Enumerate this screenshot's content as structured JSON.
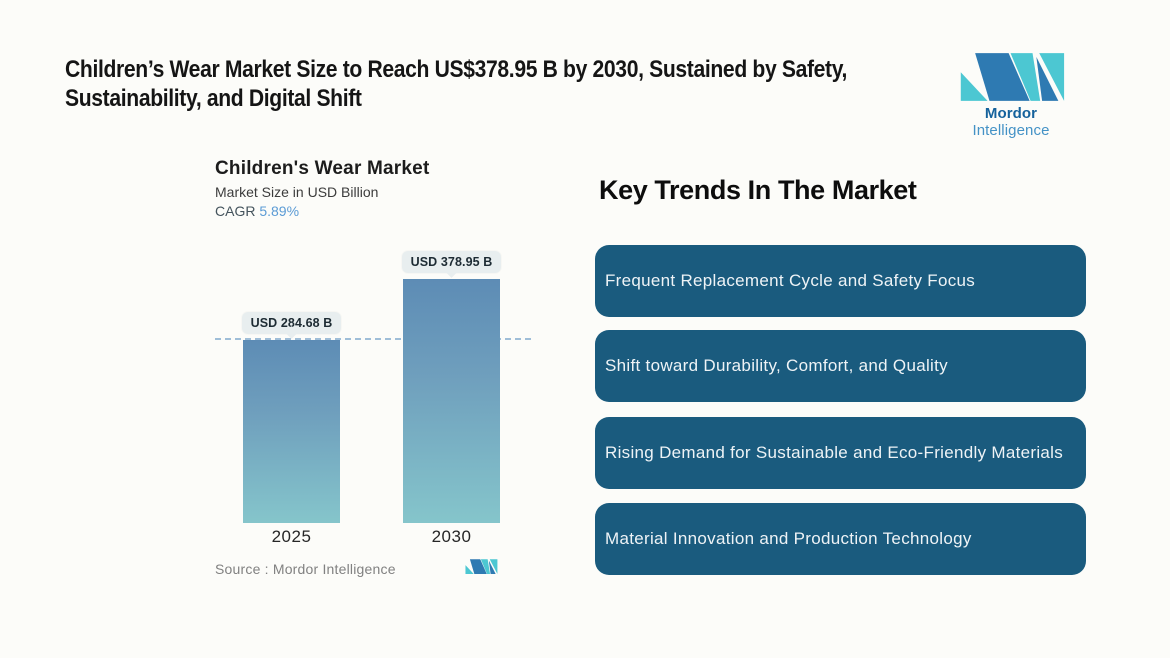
{
  "page": {
    "title_line1": "Children’s Wear Market Size to Reach US$378.95 B by 2030, Sustained by Safety,",
    "title_line2": "Sustainability, and Digital Shift"
  },
  "brand": {
    "name_bold": "Mordor",
    "name_light": "Intelligence",
    "logo_colors": {
      "dark_blue": "#2e7ab2",
      "teal": "#4cc7d2"
    }
  },
  "chart_data": {
    "type": "bar",
    "title": "Children's Wear Market",
    "subtitle": "Market Size in USD Billion",
    "cagr_label": "CAGR",
    "cagr_value": "5.89%",
    "categories": [
      "2025",
      "2030"
    ],
    "values": [
      284.68,
      378.95
    ],
    "value_labels": [
      "USD 284.68 B",
      "USD 378.95 B"
    ],
    "unit": "USD Billion",
    "ylim": [
      0,
      378.95
    ],
    "reference_line_at": 284.68,
    "legend": "none",
    "grid": "off",
    "bar_gradient_top": "#5d8cb5",
    "bar_gradient_bottom": "#85c5cb",
    "dashed_line_color": "#9fbed8",
    "source": "Source :  Mordor Intelligence"
  },
  "trends": {
    "heading": "Key Trends In The Market",
    "box_color": "#1a5b7e",
    "items": [
      "Frequent Replacement Cycle and Safety Focus",
      "Shift toward Durability, Comfort, and Quality",
      "Rising Demand for Sustainable and Eco-Friendly Materials",
      "Material Innovation and Production Technology"
    ]
  }
}
